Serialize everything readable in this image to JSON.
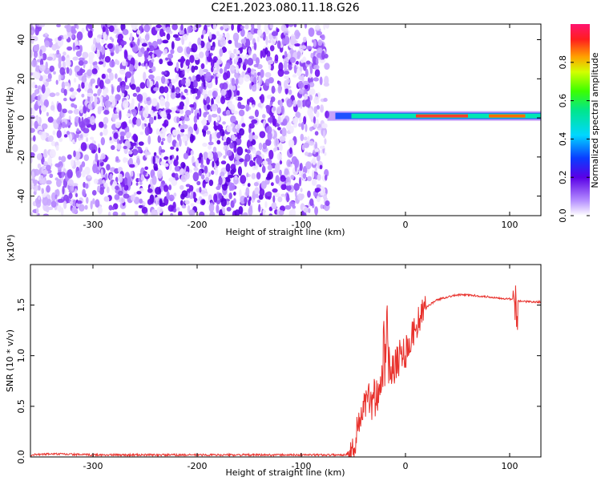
{
  "title": "C2E1.2023.080.11.18.G26",
  "colors": {
    "snr_line": "#e8312c",
    "spectrogram_hue": "#7a19f0"
  },
  "chart_data": [
    {
      "type": "heatmap",
      "xlabel": "Height of straight line (km)",
      "ylabel": "Frequency (Hz)",
      "xlim": [
        -360,
        130
      ],
      "ylim": [
        -50,
        48
      ],
      "xticks": [
        -300,
        -200,
        -100,
        0,
        100
      ],
      "yticks": [
        -40,
        -20,
        0,
        20,
        40
      ],
      "colorbar": {
        "label": "Normalized spectral amplitude",
        "range": [
          0.0,
          1.0
        ],
        "ticks": [
          0.0,
          0.2,
          0.4,
          0.6,
          0.8
        ],
        "tick_labels": [
          "0.0",
          "0.2",
          "0.4",
          "0.6",
          "0.8"
        ],
        "colormap": "rainbow"
      },
      "features": {
        "noise_region_x": [
          -360,
          -75
        ],
        "signal_line_freq_hz": 1,
        "signal_line_x": [
          -75,
          130
        ]
      }
    },
    {
      "type": "line",
      "xlabel": "Height of straight line (km)",
      "ylabel": "SNR (10 * v/v)",
      "scale_label": "(x10⁴)",
      "xlim": [
        -360,
        130
      ],
      "ylim": [
        0,
        1.9
      ],
      "xticks": [
        -300,
        -200,
        -100,
        0,
        100
      ],
      "yticks": [
        0.0,
        0.5,
        1.0,
        1.5
      ],
      "ytick_labels": [
        "0.0",
        "0.5",
        "1.0",
        "1.5"
      ],
      "series": [
        {
          "x": [
            -360,
            -340,
            -300,
            -250,
            -200,
            -150,
            -100,
            -60,
            -52,
            -48,
            -45,
            -40,
            -35,
            -30,
            -25,
            -20,
            -15,
            -10,
            -5,
            0,
            5,
            10,
            15,
            20,
            30,
            40,
            50,
            60,
            70,
            80,
            90,
            100,
            105,
            110,
            120,
            130
          ],
          "y": [
            0.02,
            0.03,
            0.02,
            0.02,
            0.02,
            0.02,
            0.02,
            0.02,
            0.04,
            0.15,
            0.35,
            0.5,
            0.55,
            0.6,
            0.7,
            0.85,
            0.9,
            0.95,
            1.0,
            1.05,
            1.15,
            1.3,
            1.4,
            1.48,
            1.55,
            1.58,
            1.6,
            1.6,
            1.59,
            1.58,
            1.57,
            1.56,
            1.55,
            1.54,
            1.53,
            1.53
          ]
        }
      ]
    }
  ]
}
